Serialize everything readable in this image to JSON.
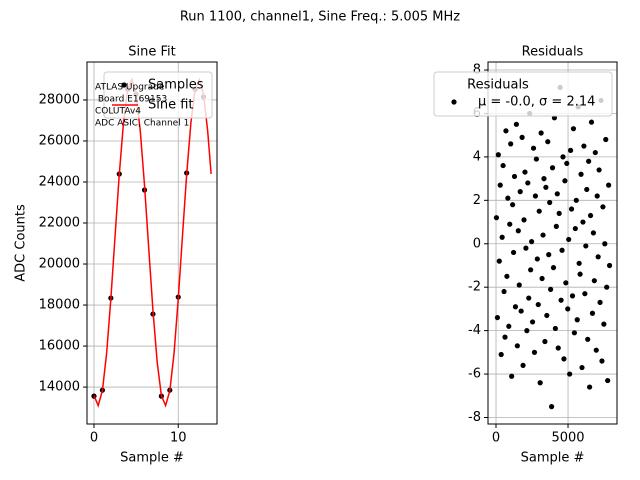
{
  "title": "Run 1100, channel1, Sine Freq.: 5.005 MHz",
  "chart_data": [
    {
      "type": "line",
      "title": "Sine Fit",
      "xlabel": "Sample #",
      "ylabel": "ADC Counts",
      "xlim": [
        -0.83,
        14.6
      ],
      "ylim": [
        12200,
        29850
      ],
      "xticks": [
        0,
        10
      ],
      "yticks": [
        14000,
        16000,
        18000,
        20000,
        22000,
        24000,
        26000,
        28000
      ],
      "grid": true,
      "legend": "upper right",
      "annotation": [
        "ATLAS Upgrade",
        " Board E169153",
        "COLUTAv4",
        "ADC ASIC, Channel 1"
      ],
      "series": [
        {
          "name": "Samples",
          "style": "markers",
          "color": "#000000",
          "x": [
            0,
            1,
            2,
            3,
            4,
            5,
            6,
            7,
            8,
            9,
            10,
            11,
            12,
            13
          ],
          "values": [
            13560,
            13850,
            18340,
            24390,
            28520,
            28280,
            23610,
            17560,
            13560,
            13850,
            18390,
            24440,
            28520,
            28150
          ]
        },
        {
          "name": "Sine fit",
          "style": "line",
          "color": "#ff0000",
          "x": [
            0,
            0.5,
            1,
            1.5,
            2,
            2.5,
            3,
            3.5,
            4,
            4.5,
            5,
            5.5,
            6,
            6.5,
            7,
            7.5,
            8,
            8.5,
            9,
            9.5,
            10,
            10.5,
            11,
            11.5,
            12,
            12.5,
            13,
            13.5,
            13.9
          ],
          "values": [
            13590,
            13100,
            13830,
            15650,
            18290,
            21360,
            24370,
            26880,
            28520,
            28990,
            28280,
            26460,
            23820,
            20740,
            17730,
            15220,
            13580,
            13100,
            13820,
            15640,
            18290,
            21360,
            24370,
            26880,
            28520,
            28990,
            28280,
            26460,
            24390
          ]
        }
      ]
    },
    {
      "type": "scatter",
      "title": "Residuals",
      "xlabel": "Sample #",
      "xlim": [
        -556,
        8400
      ],
      "ylim": [
        -8.3,
        8.37
      ],
      "xticks": [
        0,
        5000
      ],
      "yticks": [
        -8,
        -6,
        -4,
        -2,
        0,
        2,
        4,
        6,
        8
      ],
      "grid": true,
      "legend": "upper right",
      "legend_title": "Residuals",
      "series": [
        {
          "name": "μ = -0.0, σ = 2.14",
          "style": "markers",
          "color": "#000000",
          "x": [
            30,
            96,
            162,
            228,
            294,
            360,
            426,
            492,
            558,
            624,
            690,
            756,
            822,
            888,
            954,
            1020,
            1086,
            1152,
            1218,
            1284,
            1350,
            1416,
            1482,
            1548,
            1614,
            1680,
            1746,
            1812,
            1878,
            1944,
            2010,
            2076,
            2142,
            2208,
            2274,
            2340,
            2406,
            2472,
            2538,
            2604,
            2670,
            2736,
            2802,
            2868,
            2934,
            3000,
            3066,
            3132,
            3198,
            3264,
            3330,
            3396,
            3462,
            3528,
            3594,
            3660,
            3726,
            3792,
            3858,
            3924,
            3990,
            4056,
            4122,
            4188,
            4254,
            4320,
            4386,
            4452,
            4518,
            4584,
            4650,
            4716,
            4782,
            4848,
            4914,
            4980,
            5046,
            5112,
            5178,
            5244,
            5310,
            5376,
            5442,
            5508,
            5574,
            5640,
            5706,
            5772,
            5838,
            5904,
            5970,
            6036,
            6102,
            6168,
            6234,
            6300,
            6366,
            6432,
            6498,
            6564,
            6630,
            6696,
            6762,
            6828,
            6894,
            6960,
            7026,
            7092,
            7158,
            7224,
            7290,
            7356,
            7422,
            7488,
            7554,
            7620,
            7686,
            7752,
            7818,
            7884
          ],
          "values": [
            1.2,
            -3.4,
            4.1,
            -0.8,
            2.7,
            -5.1,
            0.3,
            3.6,
            -2.2,
            -4.3,
            5.2,
            -1.5,
            2.1,
            -3.8,
            0.9,
            4.6,
            -6.1,
            1.8,
            -0.4,
            3.1,
            -2.9,
            5.5,
            -4.7,
            0.6,
            -1.9,
            2.4,
            -3.1,
            4.9,
            -5.6,
            1.1,
            3.3,
            -0.2,
            -4.0,
            2.8,
            -2.5,
            6.0,
            -1.2,
            0.1,
            -3.6,
            4.4,
            -5.0,
            2.2,
            3.9,
            -0.7,
            -2.8,
            1.5,
            -6.4,
            5.1,
            -1.6,
            0.4,
            3.0,
            -4.5,
            2.6,
            -3.3,
            4.7,
            -0.5,
            1.9,
            -2.1,
            -7.5,
            3.5,
            -1.1,
            5.8,
            -3.9,
            0.8,
            2.3,
            -4.8,
            1.4,
            7.2,
            -2.6,
            -0.3,
            4.0,
            -5.3,
            2.9,
            -1.8,
            3.7,
            -3.0,
            0.2,
            -6.0,
            4.3,
            1.6,
            -2.4,
            5.3,
            -4.1,
            0.7,
            2.0,
            -3.5,
            6.3,
            -0.9,
            -1.4,
            3.2,
            -5.7,
            1.0,
            4.5,
            -2.3,
            -0.1,
            2.5,
            -4.4,
            3.8,
            -6.6,
            1.3,
            5.6,
            -3.2,
            0.5,
            -1.7,
            4.2,
            -4.9,
            2.2,
            -0.6,
            3.4,
            -2.7,
            6.6,
            -5.4,
            1.7,
            -3.7,
            0.0,
            4.8,
            -2.0,
            -6.3,
            2.7,
            -1.0
          ]
        }
      ]
    }
  ]
}
